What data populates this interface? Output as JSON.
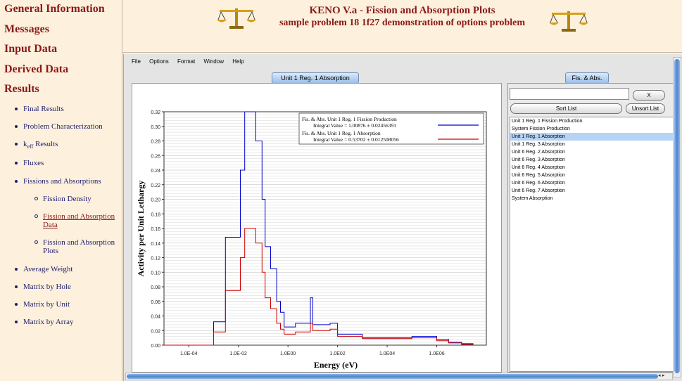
{
  "sidebar": {
    "sections": [
      "General Information",
      "Messages",
      "Input Data",
      "Derived Data",
      "Results"
    ],
    "items": [
      {
        "label": "Final Results",
        "level": 1
      },
      {
        "label": "Problem Characterization",
        "level": 1
      },
      {
        "label": "keff Results",
        "level": 1
      },
      {
        "label": "Fluxes",
        "level": 1
      },
      {
        "label": "Fissions and Absorptions",
        "level": 1
      },
      {
        "label": "Fission Density",
        "level": 2
      },
      {
        "label": "Fission and Absorption Data",
        "level": 2,
        "active": true
      },
      {
        "label": "Fission and Absorption Plots",
        "level": 2
      },
      {
        "label": "Average Weight",
        "level": 1
      },
      {
        "label": "Matrix by Hole",
        "level": 1
      },
      {
        "label": "Matrix by Unit",
        "level": 1
      },
      {
        "label": "Matrix by Array",
        "level": 1
      }
    ]
  },
  "header": {
    "title": "KENO V.a - Fission and Absorption Plots",
    "subtitle": "sample problem 18 1f27 demonstration of options problem",
    "icon": "balance-scale-icon"
  },
  "app": {
    "menu": [
      "File",
      "Options",
      "Format",
      "Window",
      "Help"
    ],
    "plot_tab": "Unit 1 Reg. 1 Absorption",
    "list_tab": "Fis. & Abs.",
    "filter_value": "",
    "clear_label": "X",
    "sort_label": "Sort List",
    "unsort_label": "Unsort List",
    "list_items": [
      "Unit 1 Reg. 1 Fission Production",
      "System Fission Production",
      "Unit 1 Reg. 1 Absorption",
      "Unit 1 Reg. 3 Absorption",
      "Unit 6 Reg. 2 Absorption",
      "Unit 6 Reg. 3 Absorption",
      "Unit 6 Reg. 4 Absorption",
      "Unit 6 Reg. 5 Absorption",
      "Unit 6 Reg. 6 Absorption",
      "Unit 6 Reg. 7 Absorption",
      "System Absorption"
    ],
    "selected_index": 2
  },
  "colors": {
    "accent": "#8b1a1a",
    "link": "#1e1e6e",
    "series_fission": "#0000cc",
    "series_absorption": "#cc0000",
    "selection": "#b5d3f5"
  },
  "chart_data": {
    "type": "line",
    "xlabel": "Energy (eV)",
    "ylabel": "Activity per Unit Lethargy",
    "xscale": "log",
    "xlim": [
      1e-05,
      100000000.0
    ],
    "ylim": [
      0,
      0.32
    ],
    "x_ticks": [
      "1.0E-04",
      "1.0E-02",
      "1.0E00",
      "1.0E02",
      "1.0E04",
      "1.0E06"
    ],
    "y_ticks": [
      "0.00",
      "0.02",
      "0.04",
      "0.06",
      "0.08",
      "0.10",
      "0.12",
      "0.14",
      "0.16",
      "0.18",
      "0.20",
      "0.22",
      "0.24",
      "0.26",
      "0.28",
      "0.30",
      "0.32"
    ],
    "grid": true,
    "legend_position": "top-right",
    "series": [
      {
        "name": "Fis. & Abs. Unit 1 Reg. 1 Fission Production",
        "integral": "Integral Value = 1.00876 ± 0.02456391",
        "points": [
          [
            1e-05,
            0.0
          ],
          [
            0.001,
            0.0
          ],
          [
            0.001,
            0.032
          ],
          [
            0.003,
            0.032
          ],
          [
            0.003,
            0.148
          ],
          [
            0.012,
            0.148
          ],
          [
            0.012,
            0.24
          ],
          [
            0.018,
            0.24
          ],
          [
            0.018,
            0.32
          ],
          [
            0.05,
            0.32
          ],
          [
            0.05,
            0.28
          ],
          [
            0.09,
            0.28
          ],
          [
            0.09,
            0.2
          ],
          [
            0.12,
            0.2
          ],
          [
            0.12,
            0.135
          ],
          [
            0.2,
            0.135
          ],
          [
            0.2,
            0.105
          ],
          [
            0.35,
            0.105
          ],
          [
            0.35,
            0.06
          ],
          [
            0.5,
            0.06
          ],
          [
            0.5,
            0.045
          ],
          [
            0.7,
            0.045
          ],
          [
            0.7,
            0.025
          ],
          [
            2,
            0.025
          ],
          [
            2,
            0.03
          ],
          [
            8,
            0.03
          ],
          [
            8,
            0.065
          ],
          [
            10,
            0.065
          ],
          [
            10,
            0.028
          ],
          [
            50,
            0.028
          ],
          [
            50,
            0.03
          ],
          [
            100,
            0.03
          ],
          [
            100,
            0.015
          ],
          [
            1000,
            0.015
          ],
          [
            1000,
            0.01
          ],
          [
            100000,
            0.01
          ],
          [
            100000,
            0.012
          ],
          [
            1000000,
            0.012
          ],
          [
            1000000,
            0.008
          ],
          [
            3000000,
            0.008
          ],
          [
            3000000,
            0.004
          ],
          [
            10000000,
            0.004
          ],
          [
            10000000,
            0.002
          ],
          [
            30000000,
            0.002
          ]
        ]
      },
      {
        "name": "Fis. & Abs. Unit 1 Reg. 1 Absorption",
        "integral": "Integral Value = 0.53702 ± 0.012508056",
        "points": [
          [
            1e-05,
            0.0
          ],
          [
            0.001,
            0.0
          ],
          [
            0.001,
            0.018
          ],
          [
            0.003,
            0.018
          ],
          [
            0.003,
            0.075
          ],
          [
            0.012,
            0.075
          ],
          [
            0.012,
            0.12
          ],
          [
            0.018,
            0.12
          ],
          [
            0.018,
            0.16
          ],
          [
            0.05,
            0.16
          ],
          [
            0.05,
            0.14
          ],
          [
            0.09,
            0.14
          ],
          [
            0.09,
            0.1
          ],
          [
            0.12,
            0.1
          ],
          [
            0.12,
            0.065
          ],
          [
            0.2,
            0.065
          ],
          [
            0.2,
            0.05
          ],
          [
            0.35,
            0.05
          ],
          [
            0.35,
            0.03
          ],
          [
            0.5,
            0.03
          ],
          [
            0.5,
            0.022
          ],
          [
            0.7,
            0.022
          ],
          [
            0.7,
            0.015
          ],
          [
            2,
            0.015
          ],
          [
            2,
            0.018
          ],
          [
            8,
            0.018
          ],
          [
            8,
            0.03
          ],
          [
            10,
            0.03
          ],
          [
            10,
            0.02
          ],
          [
            50,
            0.02
          ],
          [
            50,
            0.022
          ],
          [
            100,
            0.022
          ],
          [
            100,
            0.012
          ],
          [
            1000,
            0.012
          ],
          [
            1000,
            0.009
          ],
          [
            100000,
            0.009
          ],
          [
            100000,
            0.01
          ],
          [
            1000000,
            0.01
          ],
          [
            1000000,
            0.006
          ],
          [
            3000000,
            0.006
          ],
          [
            3000000,
            0.003
          ],
          [
            10000000,
            0.003
          ],
          [
            10000000,
            0.001
          ],
          [
            30000000,
            0.001
          ]
        ]
      }
    ]
  }
}
